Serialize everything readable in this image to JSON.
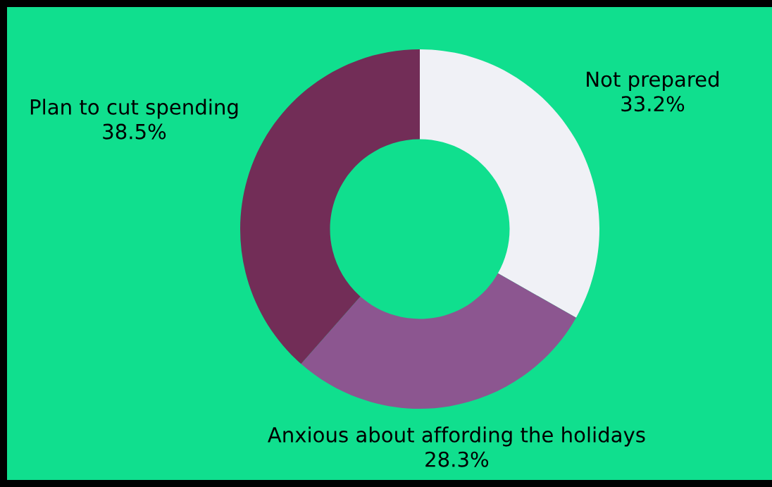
{
  "chart_data": {
    "type": "donut",
    "categories": [
      "Not prepared",
      "Anxious about affording the holidays",
      "Plan to cut spending"
    ],
    "values": [
      33.2,
      28.3,
      38.5
    ],
    "value_labels": [
      "33.2%",
      "28.3%",
      "38.5%"
    ],
    "colors": [
      "#f0f1f6",
      "#8c5690",
      "#722d57"
    ]
  }
}
